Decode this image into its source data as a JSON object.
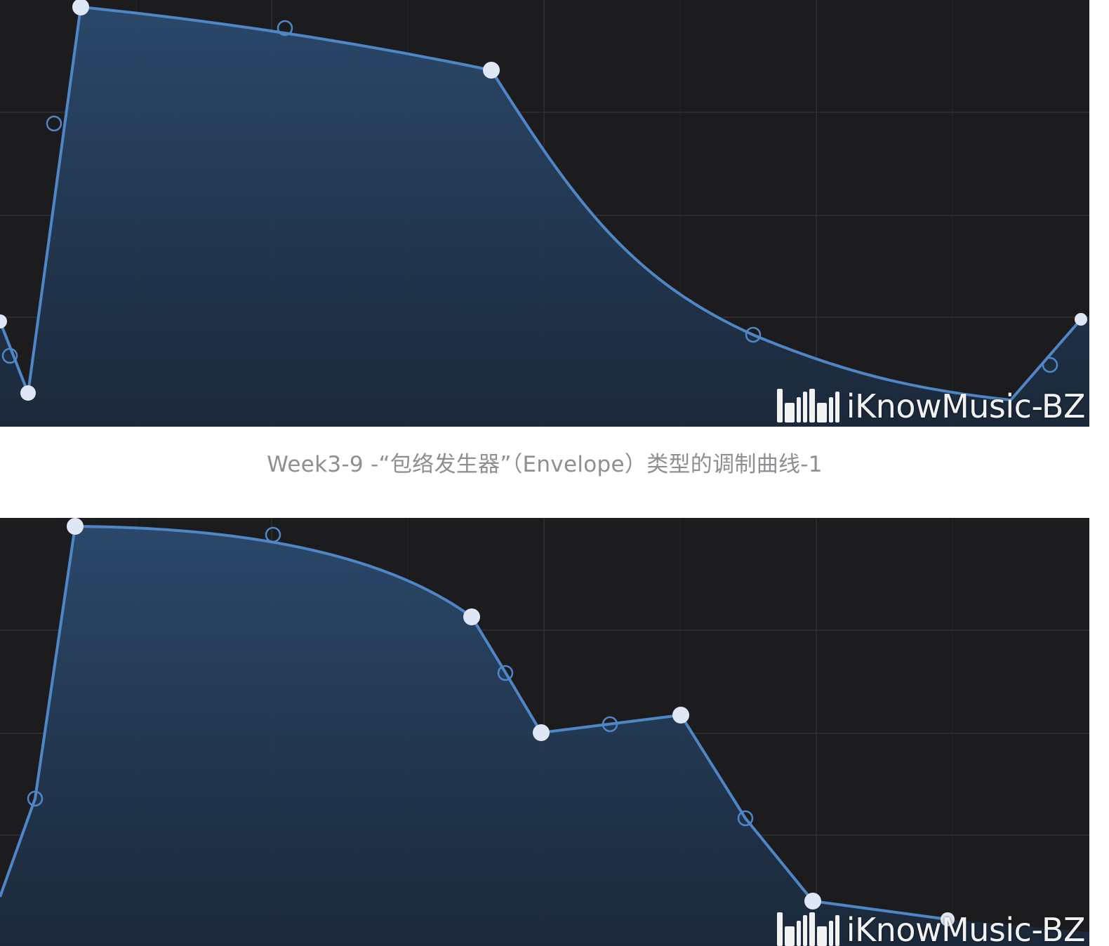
{
  "panels": [
    {
      "watermark_text": "iKnowMusic-BZ",
      "logo": "bilibili-logo",
      "curve_color": "#4f86c6",
      "handle_color": "#dfe6f5",
      "background": "#1c1c1e"
    },
    {
      "watermark_text": "iKnowMusic-BZ",
      "logo": "bilibili-logo",
      "curve_color": "#4f86c6",
      "handle_color": "#dfe6f5",
      "background": "#1c1c1e"
    }
  ],
  "caption": "Week3-9 -“包络发生器”（Envelope）类型的调制曲线-1"
}
